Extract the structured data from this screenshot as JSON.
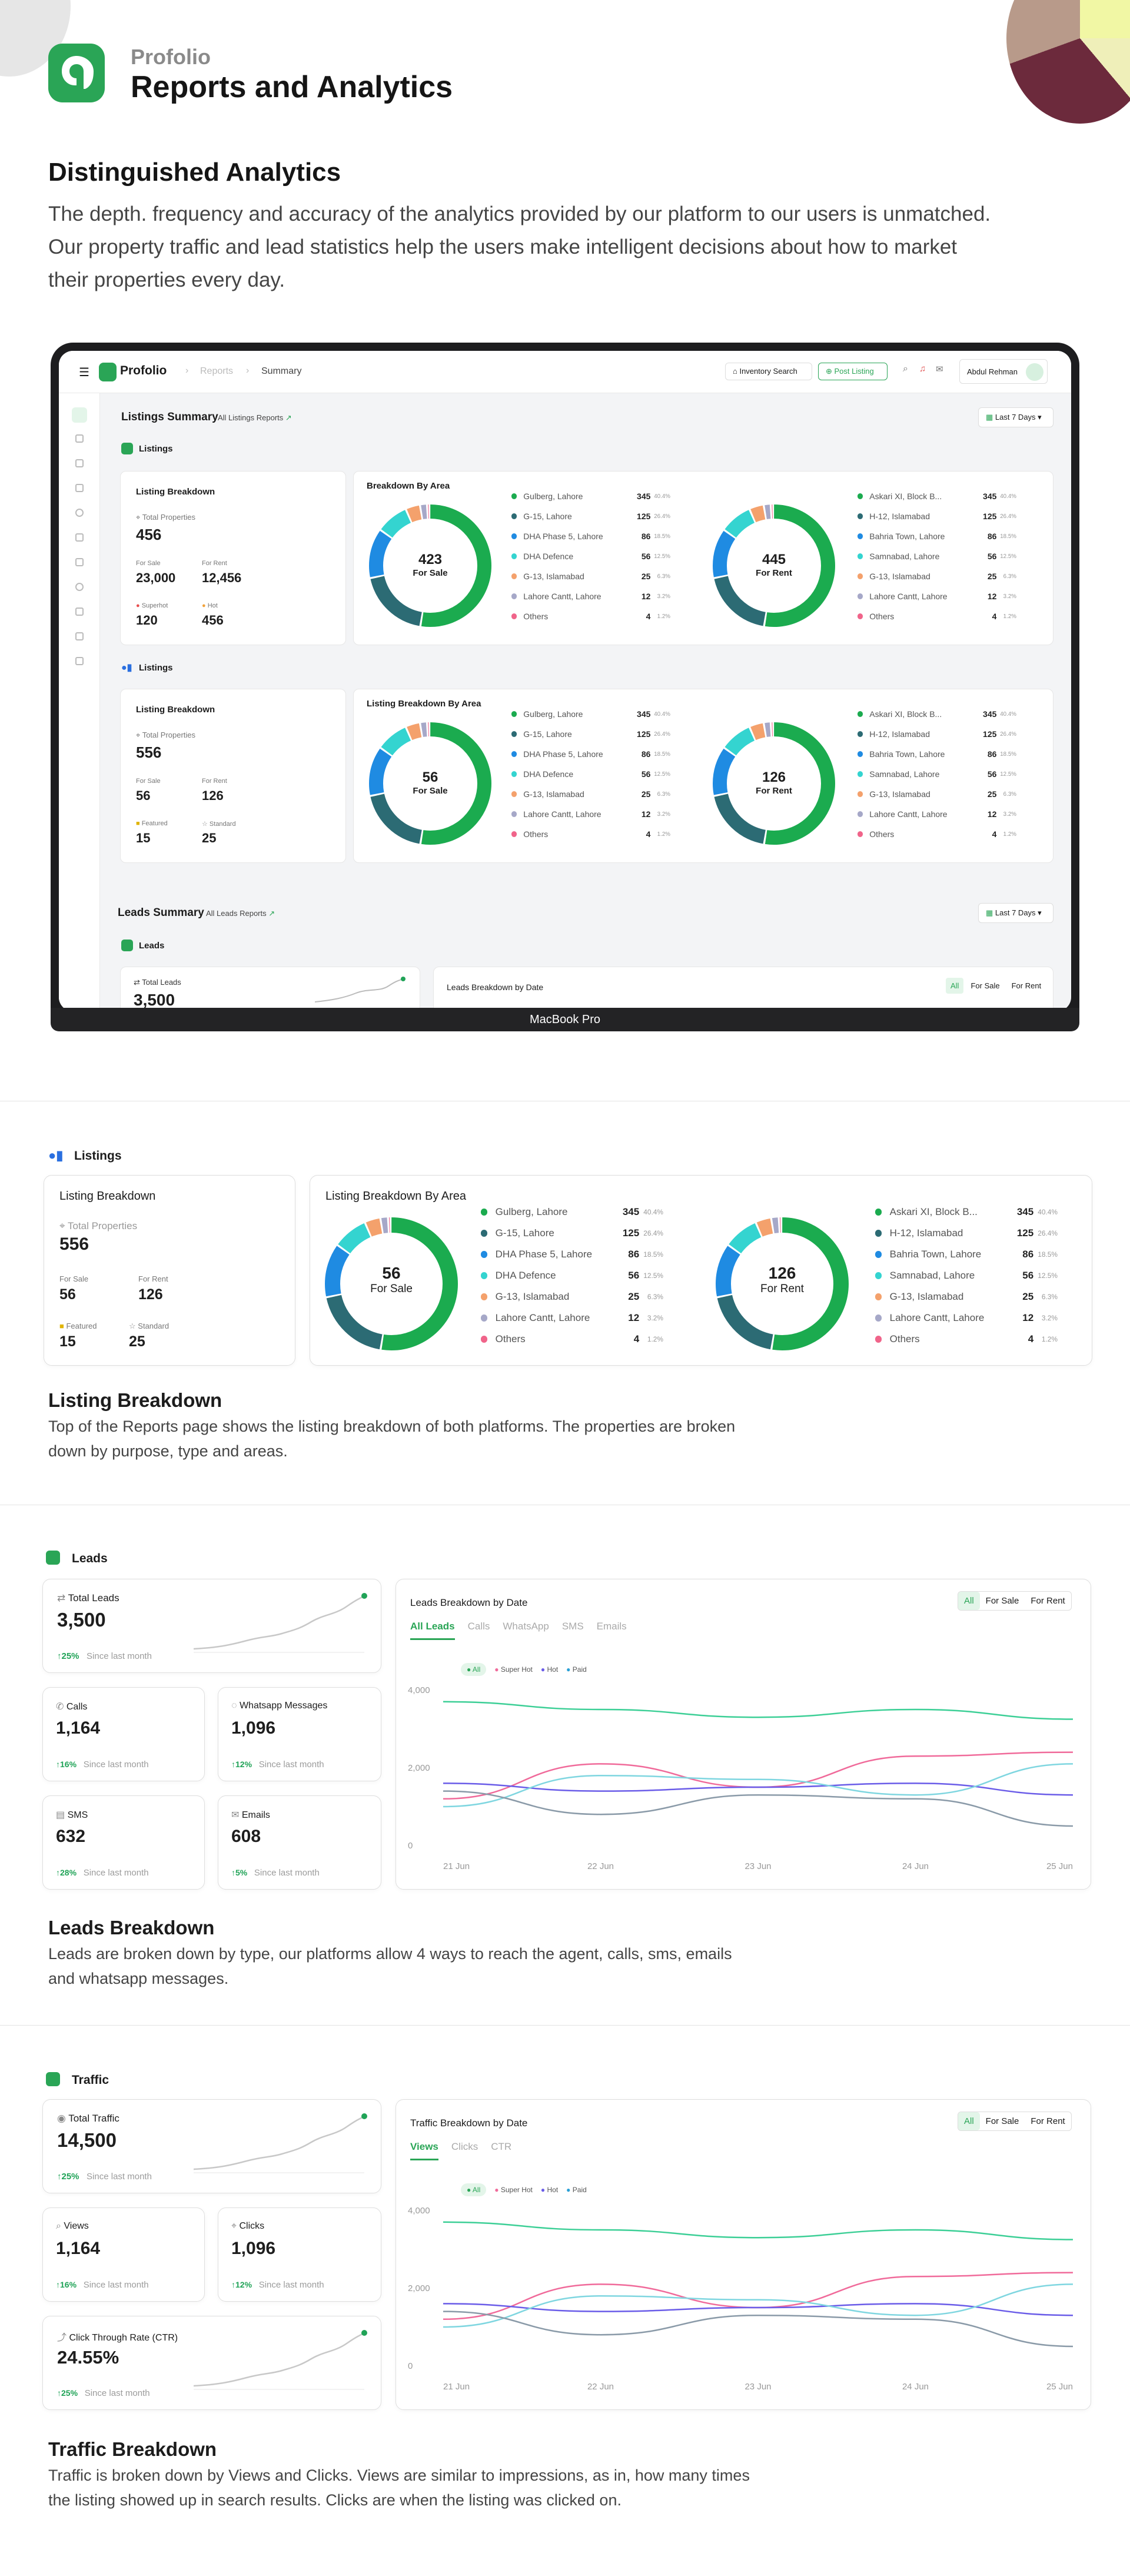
{
  "header": {
    "brand": "Profolio",
    "title": "Reports and Analytics"
  },
  "intro": {
    "heading": "Distinguished Analytics",
    "lines": [
      "The depth. frequency and accuracy of the analytics provided by our platform to our users is unmatched.",
      "Our property traffic and lead statistics help the users make intelligent decisions about how to market",
      "their properties every day."
    ]
  },
  "app": {
    "brand": "Profolio",
    "breadcrumb": [
      "Reports",
      "Summary"
    ],
    "inventory_search": "Inventory Search",
    "post_listing": "Post Listing",
    "user_name": "Abdul Rehman",
    "laptop_label": "MacBook Pro",
    "listings_summary": "Listings Summary",
    "all_listings_reports": "All Listings Reports",
    "last_7_days": "Last 7 Days",
    "leads_summary": "Leads Summary",
    "all_leads_reports": "All Leads Reports"
  },
  "listing_block_a": {
    "section_label": "Listings",
    "breakdown_title": "Listing Breakdown",
    "total_label": "Total Properties",
    "total": "456",
    "for_sale_label": "For Sale",
    "for_sale": "23,000",
    "for_rent_label": "For Rent",
    "for_rent": "12,456",
    "tag1_label": "Superhot",
    "tag1": "120",
    "tag2_label": "Hot",
    "tag2": "456",
    "area_title": "Breakdown By Area",
    "donut1_value": "423",
    "donut1_label": "For Sale",
    "donut2_value": "445",
    "donut2_label": "For Rent"
  },
  "listing_block_b": {
    "section_label": "Listings",
    "breakdown_title": "Listing Breakdown",
    "total_label": "Total Properties",
    "total": "556",
    "for_sale_label": "For Sale",
    "for_sale": "56",
    "for_rent_label": "For Rent",
    "for_rent": "126",
    "tag1_label": "Featured",
    "tag1": "15",
    "tag2_label": "Standard",
    "tag2": "25",
    "area_title": "Listing Breakdown By Area",
    "donut1_value": "56",
    "donut1_label": "For Sale",
    "donut2_value": "126",
    "donut2_label": "For Rent"
  },
  "areas_sale": [
    {
      "name": "Gulberg, Lahore",
      "value": "345",
      "pct": "40.4%",
      "color": "#1bab4f"
    },
    {
      "name": "G-15, Lahore",
      "value": "125",
      "pct": "26.4%",
      "color": "#2c6b74"
    },
    {
      "name": "DHA Phase 5, Lahore",
      "value": "86",
      "pct": "18.5%",
      "color": "#1f8be2"
    },
    {
      "name": "DHA Defence",
      "value": "56",
      "pct": "12.5%",
      "color": "#34d4d0"
    },
    {
      "name": "G-13, Islamabad",
      "value": "25",
      "pct": "6.3%",
      "color": "#f4a16c"
    },
    {
      "name": "Lahore Cantt, Lahore",
      "value": "12",
      "pct": "3.2%",
      "color": "#a6a8c8"
    },
    {
      "name": "Others",
      "value": "4",
      "pct": "1.2%",
      "color": "#f0648a"
    }
  ],
  "areas_rent": [
    {
      "name": "Askari XI, Block B...",
      "value": "345",
      "pct": "40.4%",
      "color": "#1bab4f"
    },
    {
      "name": "H-12, Islamabad",
      "value": "125",
      "pct": "26.4%",
      "color": "#2c6b74"
    },
    {
      "name": "Bahria Town, Lahore",
      "value": "86",
      "pct": "18.5%",
      "color": "#1f8be2"
    },
    {
      "name": "Samnabad, Lahore",
      "value": "56",
      "pct": "12.5%",
      "color": "#34d4d0"
    },
    {
      "name": "G-13, Islamabad",
      "value": "25",
      "pct": "6.3%",
      "color": "#f4a16c"
    },
    {
      "name": "Lahore Cantt, Lahore",
      "value": "12",
      "pct": "3.2%",
      "color": "#a6a8c8"
    },
    {
      "name": "Others",
      "value": "4",
      "pct": "1.2%",
      "color": "#f0648a"
    }
  ],
  "listing_section": {
    "heading": "Listing Breakdown",
    "lines": [
      "Top of the Reports page shows the listing breakdown of both platforms. The properties are broken",
      "down by purpose, type and areas."
    ]
  },
  "leads": {
    "section_label": "Leads",
    "total_label": "Total Leads",
    "total": "3,500",
    "total_change": "25%",
    "calls_label": "Calls",
    "calls": "1,164",
    "calls_change": "16%",
    "whatsapp_label": "Whatsapp Messages",
    "whatsapp": "1,096",
    "whatsapp_change": "12%",
    "sms_label": "SMS",
    "sms": "632",
    "sms_change": "28%",
    "emails_label": "Emails",
    "emails": "608",
    "emails_change": "5%",
    "since": "Since last month",
    "chart_title": "Leads Breakdown by Date",
    "filters": [
      "All",
      "For Sale",
      "For Rent"
    ],
    "tabs": [
      "All Leads",
      "Calls",
      "WhatsApp",
      "SMS",
      "Emails"
    ],
    "legend": [
      "All",
      "Super Hot",
      "Hot",
      "Paid"
    ],
    "heading": "Leads Breakdown",
    "lines": [
      "Leads are broken down by type, our platforms allow 4 ways to reach the agent, calls, sms, emails",
      "and whatsapp messages."
    ]
  },
  "traffic": {
    "section_label": "Traffic",
    "total_label": "Total Traffic",
    "total": "14,500",
    "total_change": "25%",
    "views_label": "Views",
    "views": "1,164",
    "views_change": "16%",
    "clicks_label": "Clicks",
    "clicks": "1,096",
    "clicks_change": "12%",
    "ctr_label": "Click Through Rate (CTR)",
    "ctr": "24.55%",
    "ctr_change": "25%",
    "since": "Since last month",
    "chart_title": "Traffic Breakdown by Date",
    "filters": [
      "All",
      "For Sale",
      "For Rent"
    ],
    "tabs": [
      "Views",
      "Clicks",
      "CTR"
    ],
    "legend": [
      "All",
      "Super Hot",
      "Hot",
      "Paid"
    ],
    "heading": "Traffic Breakdown",
    "lines": [
      "Traffic is broken down by Views and Clicks. Views are similar to impressions, as in, how many times",
      "the listing showed up in search results. Clicks are when the listing was clicked on."
    ]
  },
  "chart_data": [
    {
      "type": "line",
      "title": "Leads Breakdown by Date",
      "x": [
        "21 Jun",
        "22 Jun",
        "23 Jun",
        "24 Jun",
        "25 Jun"
      ],
      "ylim": [
        0,
        4000
      ],
      "yticks": [
        "4,000",
        "2,000",
        "0"
      ],
      "series": [
        {
          "name": "All",
          "color": "#3ccf96",
          "values": [
            3700,
            3500,
            3300,
            3500,
            3250
          ]
        },
        {
          "name": "Super Hot",
          "color": "#f06a9a",
          "values": [
            1200,
            2100,
            1500,
            2300,
            2400
          ]
        },
        {
          "name": "Hot",
          "color": "#6a5ce8",
          "values": [
            1600,
            1400,
            1500,
            1600,
            1300
          ]
        },
        {
          "name": "Paid",
          "color": "#7fd6e0",
          "values": [
            1000,
            1800,
            1700,
            1300,
            2100
          ]
        },
        {
          "name": "",
          "color": "#8a9aa8",
          "values": [
            1400,
            800,
            1300,
            1200,
            500
          ]
        }
      ]
    },
    {
      "type": "line",
      "title": "Traffic Breakdown by Date",
      "x": [
        "21 Jun",
        "22 Jun",
        "23 Jun",
        "24 Jun",
        "25 Jun"
      ],
      "ylim": [
        0,
        4000
      ],
      "yticks": [
        "4,000",
        "2,000",
        "0"
      ],
      "series": [
        {
          "name": "All",
          "color": "#3ccf96",
          "values": [
            3700,
            3500,
            3300,
            3500,
            3250
          ]
        },
        {
          "name": "Super Hot",
          "color": "#f06a9a",
          "values": [
            1200,
            2100,
            1500,
            2300,
            2400
          ]
        },
        {
          "name": "Hot",
          "color": "#6a5ce8",
          "values": [
            1600,
            1400,
            1500,
            1600,
            1300
          ]
        },
        {
          "name": "Paid",
          "color": "#7fd6e0",
          "values": [
            1000,
            1800,
            1700,
            1300,
            2100
          ]
        },
        {
          "name": "",
          "color": "#8a9aa8",
          "values": [
            1400,
            800,
            1300,
            1200,
            500
          ]
        }
      ]
    }
  ]
}
